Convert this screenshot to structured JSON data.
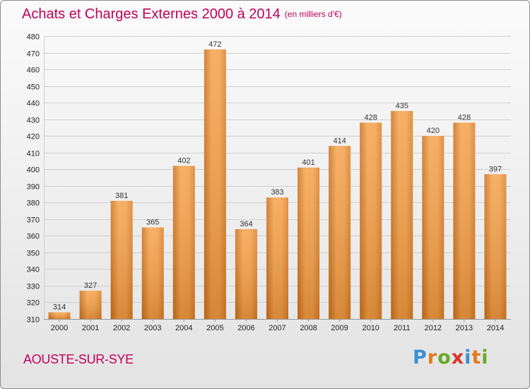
{
  "title": "Achats et Charges Externes 2000 à 2014",
  "subtitle": "(en milliers d'€)",
  "town": "AOUSTE-SUR-SYE",
  "logo": {
    "letters": [
      "P",
      "r",
      "o",
      "x",
      "i",
      "t",
      "i"
    ],
    "colors": [
      "#3b8fd6",
      "#e27a1e",
      "#6aa829",
      "#d8342a",
      "#3b8fd6",
      "#e27a1e",
      "#6aa829"
    ]
  },
  "chart_data": {
    "type": "bar",
    "categories": [
      "2000",
      "2001",
      "2002",
      "2003",
      "2004",
      "2005",
      "2006",
      "2007",
      "2008",
      "2009",
      "2010",
      "2011",
      "2012",
      "2013",
      "2014"
    ],
    "values": [
      314,
      327,
      381,
      365,
      402,
      472,
      364,
      383,
      401,
      414,
      428,
      435,
      420,
      428,
      397
    ],
    "ylim": [
      310,
      480
    ],
    "yticks": [
      310,
      320,
      330,
      340,
      350,
      360,
      370,
      380,
      390,
      400,
      410,
      420,
      430,
      440,
      450,
      460,
      470,
      480
    ],
    "grid": true,
    "bar_color": "#f0922e"
  }
}
